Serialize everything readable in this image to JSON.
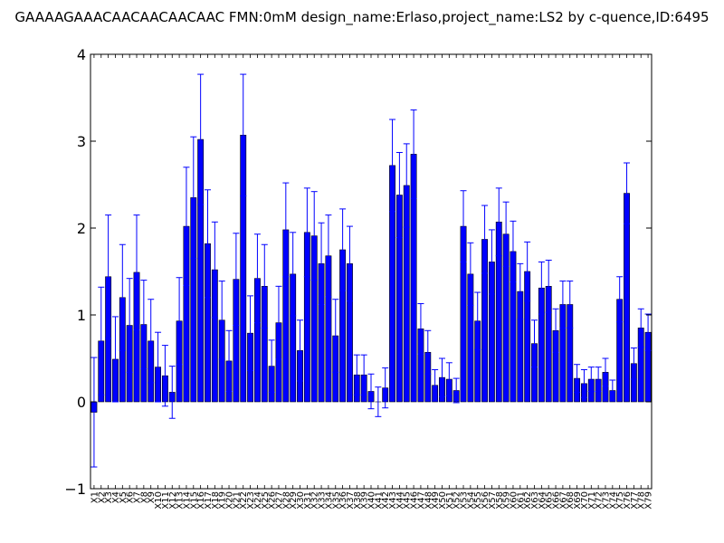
{
  "chart_data": {
    "type": "bar",
    "title": "GAAAAGAAACAACAACAACAAC  FMN:0mM  design_name:Erlaso,project_name:LS2 by c-quence,ID:6495",
    "xlabel": "",
    "ylabel": "",
    "ylim": [
      -1,
      4
    ],
    "yticks": [
      -1,
      0,
      1,
      2,
      3,
      4
    ],
    "grid": false,
    "legend": "none",
    "colors": {
      "bar_fill": "#0000ff",
      "bar_edge": "#000000",
      "error_bar": "#0000ff",
      "axes": "#000000",
      "background": "#ffffff"
    },
    "categories": [
      "X1",
      "X2",
      "X3",
      "X4",
      "X5",
      "X6",
      "X7",
      "X8",
      "X9",
      "X10",
      "X11",
      "X12",
      "X13",
      "X14",
      "X15",
      "X16",
      "X17",
      "X18",
      "X19",
      "X20",
      "X21",
      "X22",
      "X23",
      "X24",
      "X25",
      "X26",
      "X27",
      "X28",
      "X29",
      "X30",
      "X31",
      "X32",
      "X33",
      "X34",
      "X35",
      "X36",
      "X37",
      "X38",
      "X39",
      "X40",
      "X41",
      "X42",
      "X43",
      "X44",
      "X45",
      "X46",
      "X47",
      "X48",
      "X49",
      "X50",
      "X51",
      "X52",
      "X53",
      "X54",
      "X55",
      "X56",
      "X57",
      "X58",
      "X59",
      "X60",
      "X61",
      "X62",
      "X63",
      "X64",
      "X65",
      "X66",
      "X67",
      "X68",
      "X69",
      "X70",
      "X71",
      "X72",
      "X73",
      "X74",
      "X75",
      "X76",
      "X77",
      "X78",
      "X79"
    ],
    "values": [
      -0.12,
      0.7,
      1.44,
      0.49,
      1.2,
      0.88,
      1.49,
      0.89,
      0.7,
      0.4,
      0.3,
      0.11,
      0.93,
      2.02,
      2.35,
      3.02,
      1.82,
      1.52,
      0.94,
      0.47,
      1.41,
      3.07,
      0.79,
      1.42,
      1.33,
      0.41,
      0.91,
      1.98,
      1.47,
      0.59,
      1.95,
      1.91,
      1.59,
      1.68,
      0.76,
      1.75,
      1.59,
      0.31,
      0.31,
      0.12,
      0.0,
      0.16,
      2.72,
      2.38,
      2.49,
      2.85,
      0.84,
      0.57,
      0.19,
      0.28,
      0.26,
      0.13,
      2.02,
      1.47,
      0.93,
      1.87,
      1.61,
      2.07,
      1.93,
      1.73,
      1.27,
      1.5,
      0.67,
      1.31,
      1.33,
      0.82,
      1.12,
      1.12,
      0.27,
      0.21,
      0.26,
      0.26,
      0.34,
      0.13,
      1.18,
      2.4,
      0.44,
      0.85,
      0.8
    ],
    "errors": [
      0.63,
      0.62,
      0.71,
      0.49,
      0.61,
      0.54,
      0.66,
      0.51,
      0.48,
      0.4,
      0.35,
      0.3,
      0.5,
      0.68,
      0.7,
      0.75,
      0.62,
      0.55,
      0.45,
      0.35,
      0.53,
      0.7,
      0.43,
      0.51,
      0.48,
      0.3,
      0.42,
      0.54,
      0.48,
      0.35,
      0.51,
      0.51,
      0.47,
      0.47,
      0.42,
      0.47,
      0.43,
      0.23,
      0.23,
      0.2,
      0.17,
      0.23,
      0.53,
      0.49,
      0.48,
      0.51,
      0.29,
      0.25,
      0.18,
      0.22,
      0.19,
      0.14,
      0.41,
      0.36,
      0.33,
      0.39,
      0.37,
      0.39,
      0.37,
      0.35,
      0.32,
      0.34,
      0.27,
      0.3,
      0.3,
      0.25,
      0.27,
      0.27,
      0.16,
      0.16,
      0.14,
      0.14,
      0.16,
      0.12,
      0.26,
      0.35,
      0.18,
      0.22,
      0.21
    ]
  }
}
